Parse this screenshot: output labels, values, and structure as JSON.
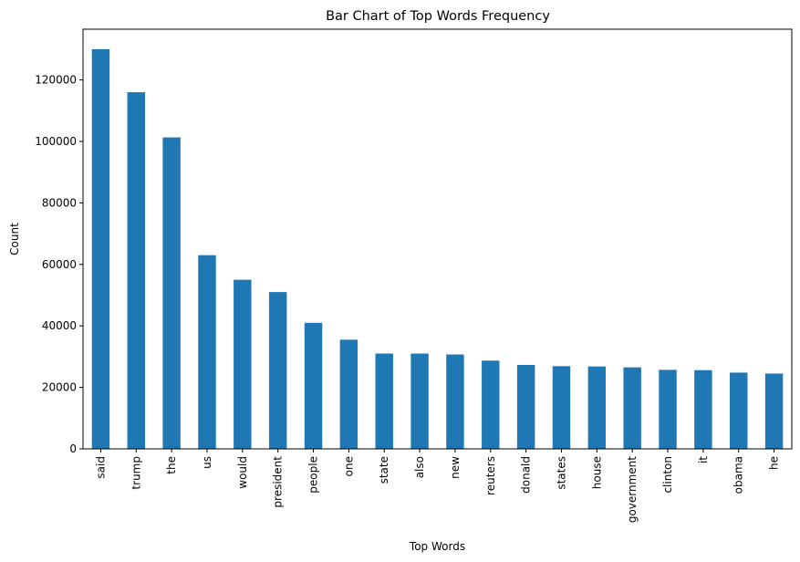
{
  "chart_data": {
    "type": "bar",
    "title": "Bar Chart of Top Words Frequency",
    "xlabel": "Top Words",
    "ylabel": "Count",
    "categories": [
      "said",
      "trump",
      "the",
      "us",
      "would",
      "president",
      "people",
      "one",
      "state",
      "also",
      "new",
      "reuters",
      "donald",
      "states",
      "house",
      "government",
      "clinton",
      "it",
      "obama",
      "he"
    ],
    "values": [
      130000,
      116000,
      101300,
      63000,
      55000,
      51000,
      41000,
      35500,
      31000,
      31000,
      30700,
      28700,
      27300,
      26900,
      26800,
      26500,
      25700,
      25600,
      24800,
      24500
    ],
    "yticks": [
      0,
      20000,
      40000,
      60000,
      80000,
      100000,
      120000
    ],
    "ytick_labels": [
      "0",
      "20000",
      "40000",
      "60000",
      "80000",
      "100000",
      "120000"
    ],
    "ylim": [
      0,
      136500
    ],
    "grid": false,
    "bar_color": "#1f77b4"
  }
}
